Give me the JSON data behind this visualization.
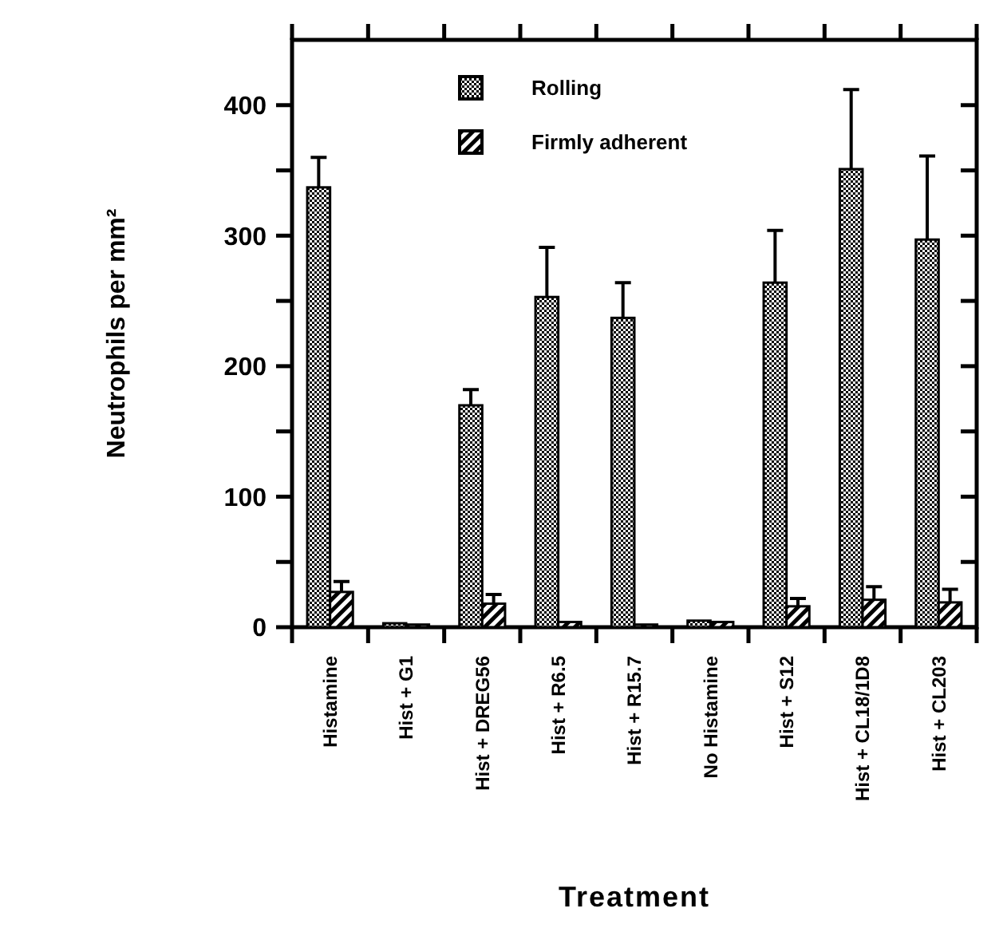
{
  "chart_data": {
    "type": "bar",
    "xlabel": "Treatment",
    "ylabel": "Neutrophils per mm²",
    "categories": [
      "Histamine",
      "Hist + G1",
      "Hist + DREG56",
      "Hist + R6.5",
      "Hist + R15.7",
      "No Histamine",
      "Hist + S12",
      "Hist + CL18/1D8",
      "Hist + CL203"
    ],
    "series": [
      {
        "name": "Rolling",
        "color": "#000000",
        "values": [
          337,
          3,
          170,
          253,
          237,
          5,
          264,
          351,
          297
        ],
        "errors": [
          23,
          null,
          12,
          38,
          27,
          null,
          40,
          61,
          64
        ]
      },
      {
        "name": "Firmly adherent",
        "color": "#000000",
        "values": [
          27,
          2,
          18,
          4,
          2,
          4,
          16,
          21,
          19
        ],
        "errors": [
          8,
          null,
          7,
          null,
          null,
          null,
          6,
          10,
          10
        ]
      }
    ],
    "ylim": [
      0,
      450
    ],
    "yticks": [
      0,
      {
        "value": 50,
        "label": null
      },
      100,
      {
        "value": 150,
        "label": null
      },
      200,
      {
        "value": 250,
        "label": null
      },
      300,
      {
        "value": 350,
        "label": null
      },
      400
    ],
    "grid": false,
    "legend": "top"
  }
}
